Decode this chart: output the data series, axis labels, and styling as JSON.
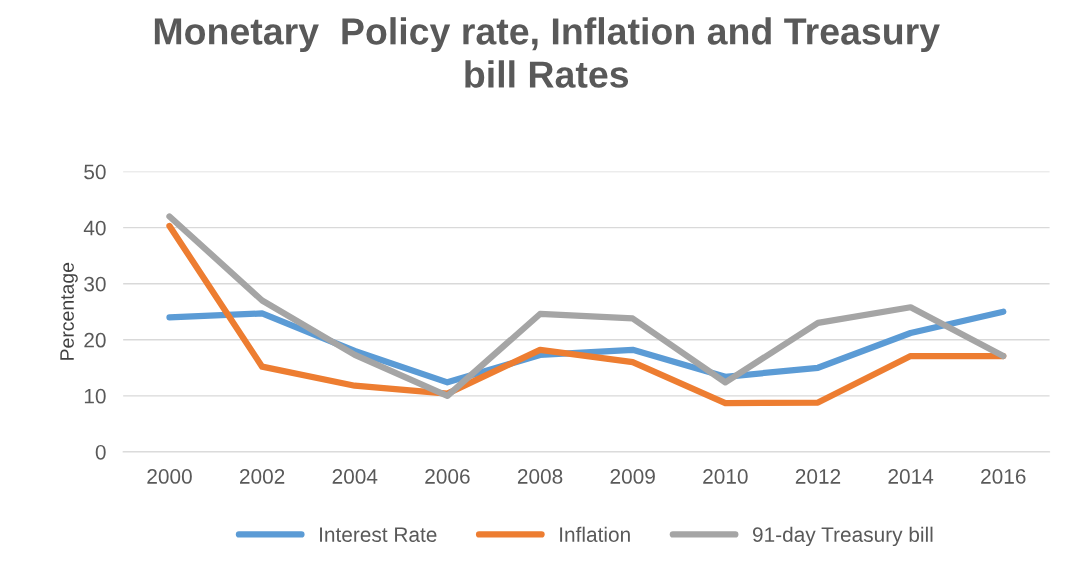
{
  "chart_data": {
    "type": "line",
    "title": "Monetary  Policy rate, Inflation and Treasury\nbill Rates",
    "ylabel": "Percentage",
    "categories": [
      "2000",
      "2002",
      "2004",
      "2006",
      "2008",
      "2009",
      "2010",
      "2012",
      "2014",
      "2016"
    ],
    "series": [
      {
        "name": "Interest Rate",
        "color": "#5b9bd5",
        "values": [
          24,
          24.7,
          18,
          12.4,
          17.3,
          18.2,
          13.4,
          15,
          21.2,
          25
        ]
      },
      {
        "name": "Inflation",
        "color": "#ed7d31",
        "values": [
          40.3,
          15.2,
          11.8,
          10.4,
          18.2,
          16,
          8.7,
          8.8,
          17.1,
          17.1
        ]
      },
      {
        "name": "91-day Treasury bill",
        "color": "#a5a5a5",
        "values": [
          42,
          27,
          17.3,
          10,
          24.6,
          23.8,
          12.4,
          23,
          25.8,
          17.1
        ]
      }
    ],
    "ylim": [
      0,
      50
    ],
    "yticks": [
      0,
      10,
      20,
      30,
      40,
      50
    ],
    "grid": "y",
    "legend": "bottom",
    "line_style": "solid"
  }
}
